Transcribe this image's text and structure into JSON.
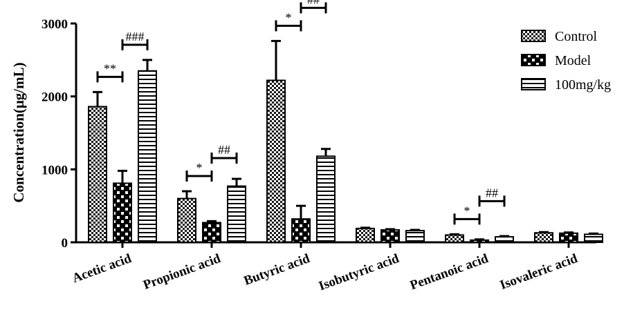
{
  "chart_data": {
    "type": "bar",
    "title": "",
    "xlabel": "",
    "ylabel": "Concentration(μg/mL)",
    "ylim": [
      0,
      3000
    ],
    "yticks": [
      "0",
      "1000",
      "2000",
      "3000"
    ],
    "categories": [
      "Acetic acid",
      "Propionic acid",
      "Butyric acid",
      "Isobutyric acid",
      "Pentanoic acid",
      "Isovaleric acid"
    ],
    "series": [
      {
        "name": "Control",
        "pattern": "checker",
        "values": [
          1860,
          600,
          2220,
          190,
          100,
          130
        ],
        "errors": [
          200,
          100,
          540,
          10,
          10,
          10
        ]
      },
      {
        "name": "Model",
        "pattern": "dots",
        "values": [
          810,
          270,
          320,
          170,
          30,
          125
        ],
        "errors": [
          170,
          20,
          180,
          10,
          10,
          10
        ]
      },
      {
        "name": "100mg/kg",
        "pattern": "hlines",
        "values": [
          2350,
          770,
          1180,
          160,
          75,
          110
        ],
        "errors": [
          150,
          100,
          100,
          10,
          10,
          10
        ]
      }
    ],
    "legend": {
      "position": "top-right",
      "entries": [
        "Control",
        "Model",
        "100mg/kg"
      ]
    },
    "annotations": [
      {
        "category": "Acetic acid",
        "between": [
          "Control",
          "Model"
        ],
        "text": "**"
      },
      {
        "category": "Acetic acid",
        "between": [
          "Model",
          "100mg/kg"
        ],
        "text": "###"
      },
      {
        "category": "Propionic acid",
        "between": [
          "Control",
          "Model"
        ],
        "text": "*"
      },
      {
        "category": "Propionic acid",
        "between": [
          "Model",
          "100mg/kg"
        ],
        "text": "##"
      },
      {
        "category": "Butyric acid",
        "between": [
          "Control",
          "Model"
        ],
        "text": "*"
      },
      {
        "category": "Butyric acid",
        "between": [
          "Model",
          "100mg/kg"
        ],
        "text": "##"
      },
      {
        "category": "Pentanoic acid",
        "between": [
          "Control",
          "Model"
        ],
        "text": "*"
      },
      {
        "category": "Pentanoic acid",
        "between": [
          "Model",
          "100mg/kg"
        ],
        "text": "##"
      }
    ],
    "grid": false
  }
}
